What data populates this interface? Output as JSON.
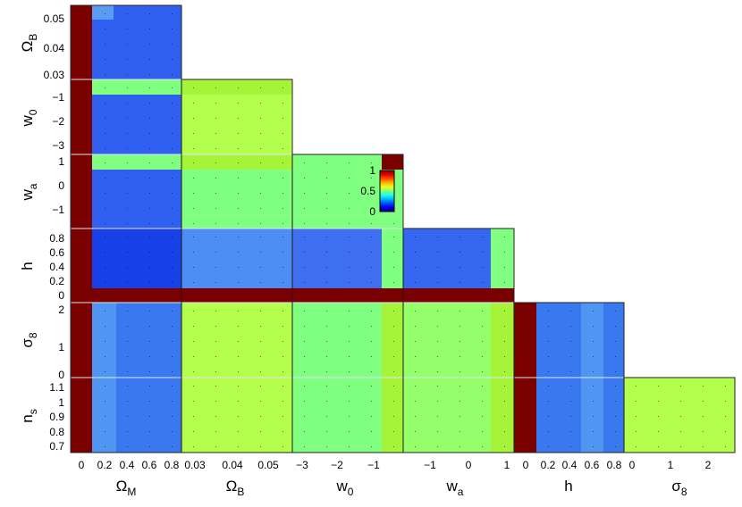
{
  "chart_data": {
    "type": "heatmap",
    "description": "Triangle grid of pairwise parameter panels colored by value (colorbar 0 to 1, jet colormap)",
    "parameters": [
      {
        "key": "omega_m",
        "name": "Ω",
        "sub": "M",
        "ticks": [
          "0",
          "0.2",
          "0.4",
          "0.6",
          "0.8"
        ]
      },
      {
        "key": "omega_b",
        "name": "Ω",
        "sub": "B",
        "ticks": [
          "0.03",
          "0.04",
          "0.05"
        ]
      },
      {
        "key": "w0",
        "name": "w",
        "sub": "0",
        "ticks": [
          "−3",
          "−2",
          "−1"
        ]
      },
      {
        "key": "wa",
        "name": "w",
        "sub": "a",
        "ticks": [
          "−1",
          "0",
          "1"
        ]
      },
      {
        "key": "h",
        "name": "h",
        "sub": "",
        "ticks": [
          "0",
          "0.2",
          "0.4",
          "0.6",
          "0.8"
        ]
      },
      {
        "key": "sigma8",
        "name": "σ",
        "sub": "8",
        "ticks": [
          "0",
          "1",
          "2"
        ]
      },
      {
        "key": "ns",
        "name": "n",
        "sub": "s",
        "ticks": [
          "0.7",
          "0.8",
          "0.9",
          "1",
          "1.1"
        ]
      }
    ],
    "row_ticks": {
      "omega_b": [
        "0.05",
        "0.04",
        "0.03"
      ],
      "w0": [
        "−1",
        "−2",
        "−3"
      ],
      "wa": [
        "1",
        "0",
        "−1"
      ],
      "h": [
        "0.8",
        "0.6",
        "0.4",
        "0.2",
        "0"
      ],
      "sigma8": [
        "2",
        "1",
        "0"
      ],
      "ns": [
        "1.1",
        "1",
        "0.9",
        "0.8",
        "0.7"
      ]
    },
    "colorbar": {
      "min": 0,
      "max": 1,
      "ticks": [
        "1",
        "0.5",
        "0"
      ],
      "colormap": "jet"
    },
    "panel_values": [
      {
        "row": "omega_b",
        "col": "omega_m",
        "summary": "strip 1.0 at Ω_M≈0, rest ≈0.25"
      },
      {
        "row": "w0",
        "col": "omega_m",
        "summary": "≈0.25, band ≈0.5 near w0≈−0.5"
      },
      {
        "row": "w0",
        "col": "omega_b",
        "summary": "≈0.55, band ≈0.65 near w0≈−0.5"
      },
      {
        "row": "wa",
        "col": "omega_m",
        "summary": "≈0.25, band ≈0.5 near wa≈1"
      },
      {
        "row": "wa",
        "col": "omega_b",
        "summary": "≈0.5, band ≈0.65 near wa≈1"
      },
      {
        "row": "wa",
        "col": "w0",
        "summary": "≈0.5"
      },
      {
        "row": "h",
        "col": "omega_m",
        "summary": "≈0.15, strip 1.0 at h≈0"
      },
      {
        "row": "h",
        "col": "omega_b",
        "summary": "≈0.3, strip 1.0 at h≈0"
      },
      {
        "row": "h",
        "col": "w0",
        "summary": "≈0.27, band ≈0.5 near w0≈−0.7, strip 1.0 at h≈0"
      },
      {
        "row": "h",
        "col": "wa",
        "summary": "≈0.25, band ≈0.5 near wa≈1, strip 1.0 at h≈0"
      },
      {
        "row": "sigma8",
        "col": "omega_m",
        "summary": "≈0.3"
      },
      {
        "row": "sigma8",
        "col": "omega_b",
        "summary": "≈0.55"
      },
      {
        "row": "sigma8",
        "col": "w0",
        "summary": "≈0.5, band ≈0.65 near w0≈−0.7"
      },
      {
        "row": "sigma8",
        "col": "wa",
        "summary": "≈0.52, band ≈0.65 near wa≈1"
      },
      {
        "row": "sigma8",
        "col": "h",
        "summary": "≈0.3, strip 1.0 at h≈0"
      },
      {
        "row": "ns",
        "col": "omega_m",
        "summary": "≈0.3"
      },
      {
        "row": "ns",
        "col": "omega_b",
        "summary": "≈0.55"
      },
      {
        "row": "ns",
        "col": "w0",
        "summary": "≈0.5, band ≈0.65 near w0≈−0.7"
      },
      {
        "row": "ns",
        "col": "wa",
        "summary": "≈0.52, band ≈0.65 near wa≈1"
      },
      {
        "row": "ns",
        "col": "h",
        "summary": "≈0.3, strip 1.0 at h≈0"
      },
      {
        "row": "ns",
        "col": "sigma8",
        "summary": "≈0.55"
      }
    ]
  },
  "colors": {
    "dark_red": "#7a0000",
    "blue": "#3060f0",
    "mid_blue": "#3a78f0",
    "deep_blue": "#1840e8",
    "cyan": "#6ff0d0",
    "green": "#a6f43a"
  }
}
